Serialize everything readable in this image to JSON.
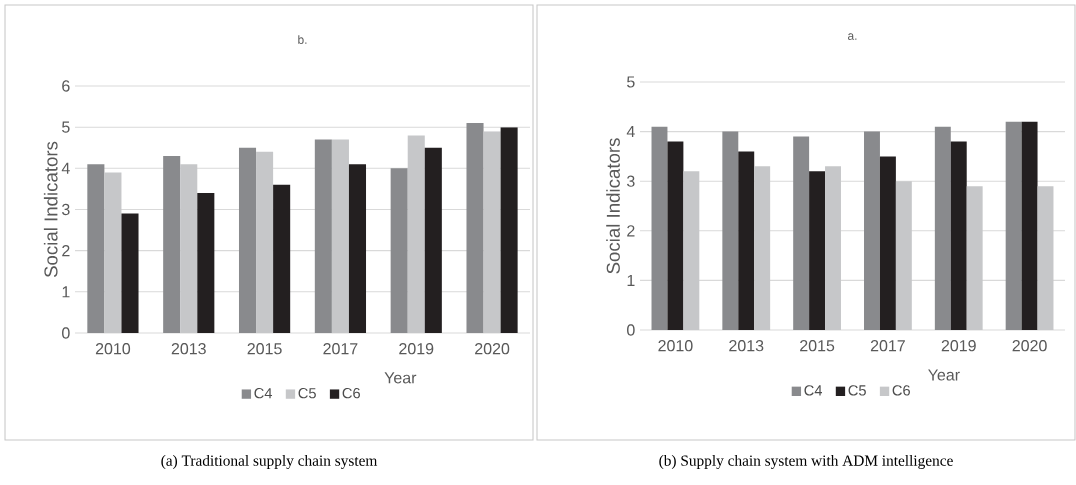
{
  "chart_data": [
    {
      "type": "bar",
      "title": "b.",
      "xlabel": "Year",
      "ylabel": "Social Indicators",
      "categories": [
        "2010",
        "2013",
        "2015",
        "2017",
        "2019",
        "2020"
      ],
      "ylim": [
        0,
        6
      ],
      "yticks": [
        0,
        1,
        2,
        3,
        4,
        5,
        6
      ],
      "grid": "y",
      "legend": "bottom",
      "series": [
        {
          "name": "C4",
          "color": "#898a8d",
          "values": [
            4.1,
            4.3,
            4.5,
            4.7,
            4.0,
            5.1
          ]
        },
        {
          "name": "C5",
          "color": "#c6c7c9",
          "values": [
            3.9,
            4.1,
            4.4,
            4.7,
            4.8,
            4.9
          ]
        },
        {
          "name": "C6",
          "color": "#231f20",
          "values": [
            2.9,
            3.4,
            3.6,
            4.1,
            4.5,
            5.0
          ]
        }
      ],
      "annotations": [
        "(a) Traditional supply chain system"
      ]
    },
    {
      "type": "bar",
      "title": "a.",
      "xlabel": "Year",
      "ylabel": "Social Indicators",
      "categories": [
        "2010",
        "2013",
        "2015",
        "2017",
        "2019",
        "2020"
      ],
      "ylim": [
        0,
        5
      ],
      "yticks": [
        0,
        1,
        2,
        3,
        4,
        5
      ],
      "grid": "y",
      "legend": "bottom",
      "series": [
        {
          "name": "C4",
          "color": "#898a8d",
          "values": [
            4.1,
            4.0,
            3.9,
            4.0,
            4.1,
            4.2
          ]
        },
        {
          "name": "C5",
          "color": "#231f20",
          "values": [
            3.8,
            3.6,
            3.2,
            3.5,
            3.8,
            4.2
          ]
        },
        {
          "name": "C6",
          "color": "#c6c7c9",
          "values": [
            3.2,
            3.3,
            3.3,
            3.0,
            2.9,
            2.9
          ]
        }
      ],
      "annotations": [
        "(b) Supply chain system with ADM intelligence"
      ]
    }
  ]
}
